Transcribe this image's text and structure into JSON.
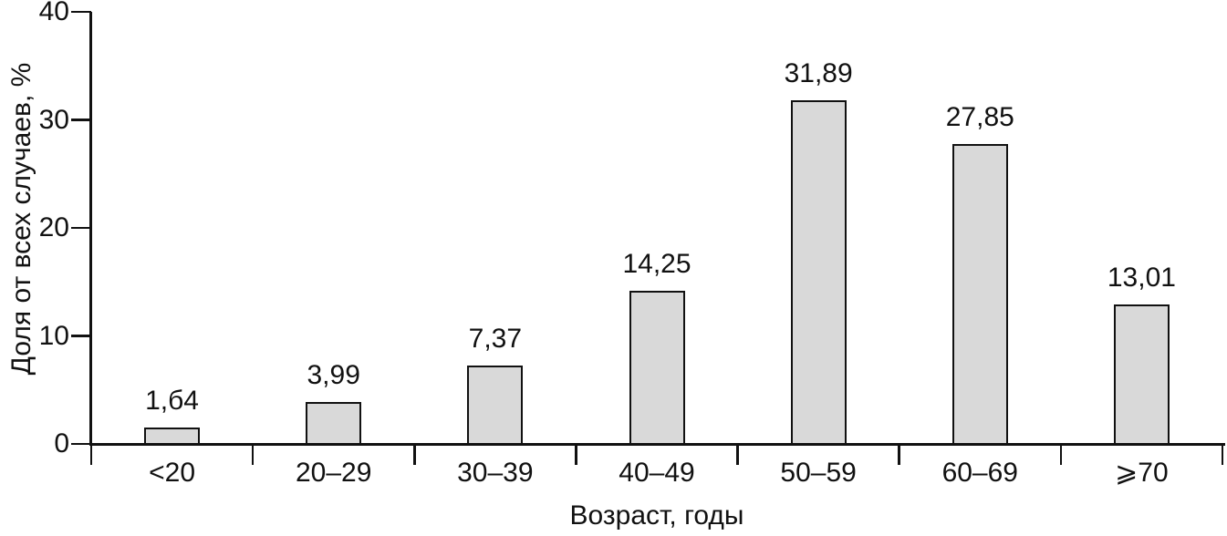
{
  "chart_data": {
    "type": "bar",
    "title": "",
    "categories": [
      "<20",
      "20–29",
      "30–39",
      "40–49",
      "50–59",
      "60–69",
      "⩾70"
    ],
    "values": [
      1.64,
      3.99,
      7.37,
      14.25,
      31.89,
      27.85,
      13.01
    ],
    "value_labels": [
      "1,б4",
      "3,99",
      "7,37",
      "14,25",
      "31,89",
      "27,85",
      "13,01"
    ],
    "xlabel": "Возраст, годы",
    "ylabel": "Доля от всех случаев, %",
    "ylim": [
      0,
      40
    ],
    "yticks": [
      0,
      10,
      20,
      30,
      40
    ],
    "grid": false,
    "legend": "none",
    "bar_fill": "#d9d9d9",
    "bar_border": "#111111",
    "axis_color": "#111111",
    "text_color": "#111111",
    "background": "#ffffff"
  }
}
